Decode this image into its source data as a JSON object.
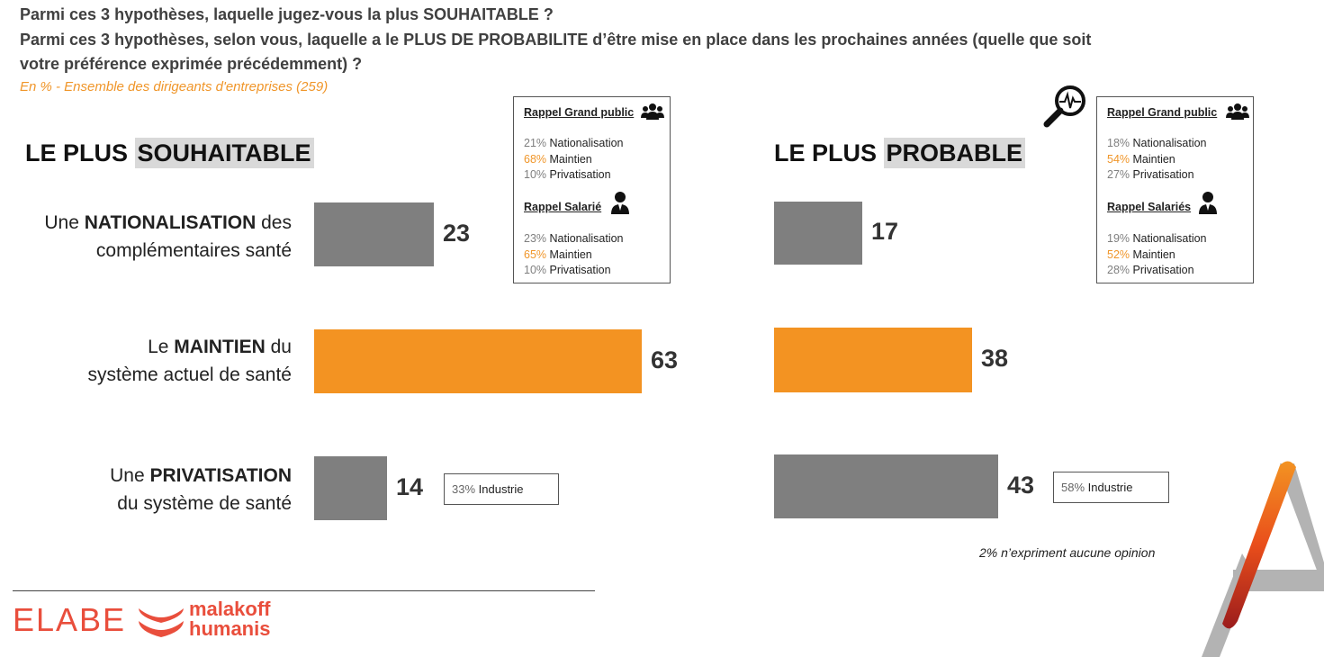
{
  "header": {
    "q1": "Parmi ces 3 hypothèses, laquelle jugez-vous la plus SOUHAITABLE ?",
    "q2a": "Parmi ces 3 hypothèses, selon vous, laquelle a le PLUS DE PROBABILITE d’être mise en place dans les prochaines années (quelle que soit",
    "q2b": "votre préférence exprimée précédemment) ?",
    "subtitle": "En % - Ensemble des dirigeants d'entreprises (259)"
  },
  "left": {
    "title_prefix": "LE PLUS ",
    "title_hl": "SOUHAITABLE"
  },
  "right": {
    "title_prefix": "LE PLUS ",
    "title_hl": "PROBABLE"
  },
  "labels": {
    "nat": {
      "pre": "Une ",
      "bold": "NATIONALISATION",
      "post": " des",
      "line2": "complémentaires santé"
    },
    "main": {
      "pre": "Le ",
      "bold": "MAINTIEN",
      "post": " du",
      "line2": "système actuel de santé"
    },
    "priv": {
      "pre": "Une ",
      "bold": "PRIVATISATION",
      "post": "",
      "line2": "du système de santé"
    }
  },
  "chart_data": [
    {
      "type": "bar",
      "title": "LE PLUS SOUHAITABLE",
      "categories": [
        "Une NATIONALISATION des complémentaires santé",
        "Le MAINTIEN du système actuel de santé",
        "Une PRIVATISATION du système de santé"
      ],
      "values": [
        23,
        63,
        14
      ],
      "colors": [
        "#7f7f7f",
        "#f39322",
        "#7f7f7f"
      ],
      "unit": "%"
    },
    {
      "type": "bar",
      "title": "LE PLUS PROBABLE",
      "categories": [
        "Une NATIONALISATION des complémentaires santé",
        "Le MAINTIEN du système actuel de santé",
        "Une PRIVATISATION du système de santé"
      ],
      "values": [
        17,
        38,
        43
      ],
      "colors": [
        "#7f7f7f",
        "#f39322",
        "#7f7f7f"
      ],
      "unit": "%"
    }
  ],
  "notes": {
    "left_priv": {
      "pct": "33%",
      "text": " Industrie"
    },
    "right_priv": {
      "pct": "58%",
      "text": " Industrie"
    },
    "no_opinion": "2% n’expriment aucune opinion"
  },
  "recall_left": {
    "h1": "Rappel Grand public",
    "g1": [
      {
        "pct": "21%",
        "text": " Nationalisation"
      },
      {
        "pct": "68%",
        "text": " Maintien"
      },
      {
        "pct": "10%",
        "text": " Privatisation"
      }
    ],
    "h2": "Rappel Salarié",
    "g2": [
      {
        "pct": "23%",
        "text": " Nationalisation"
      },
      {
        "pct": "65%",
        "text": " Maintien"
      },
      {
        "pct": "10%",
        "text": " Privatisation"
      }
    ]
  },
  "recall_right": {
    "h1": "Rappel Grand public",
    "g1": [
      {
        "pct": "18%",
        "text": " Nationalisation"
      },
      {
        "pct": "54%",
        "text": " Maintien"
      },
      {
        "pct": "27%",
        "text": " Privatisation"
      }
    ],
    "h2": "Rappel Salariés",
    "g2": [
      {
        "pct": "19%",
        "text": " Nationalisation"
      },
      {
        "pct": "52%",
        "text": " Maintien"
      },
      {
        "pct": "28%",
        "text": " Privatisation"
      }
    ]
  },
  "logos": {
    "elabe": "ELABE",
    "malakoff1": "malakoff",
    "malakoff2": "humanis"
  },
  "icons": [
    "group-icon",
    "person-icon",
    "magnifier-icon",
    "brand-a-icon"
  ],
  "colors": {
    "accent": "#f39322",
    "grey_bar": "#7f7f7f",
    "logo_red": "#e94e3c"
  }
}
